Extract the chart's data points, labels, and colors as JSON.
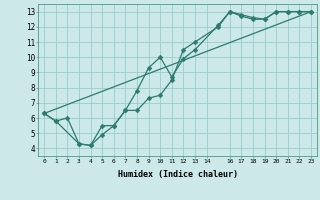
{
  "xlabel": "Humidex (Indice chaleur)",
  "bg_color": "#cce8e8",
  "grid_color": "#99cccc",
  "line_color": "#2d7a6e",
  "xlim": [
    -0.5,
    23.5
  ],
  "ylim": [
    3.5,
    13.5
  ],
  "xticks": [
    0,
    1,
    2,
    3,
    4,
    5,
    6,
    7,
    8,
    9,
    10,
    11,
    12,
    13,
    14,
    16,
    17,
    18,
    19,
    20,
    21,
    22,
    23
  ],
  "yticks": [
    4,
    5,
    6,
    7,
    8,
    9,
    10,
    11,
    12,
    13
  ],
  "line1_x": [
    0,
    1,
    2,
    3,
    4,
    5,
    6,
    7,
    8,
    9,
    10,
    11,
    12,
    13,
    15,
    16,
    17,
    18,
    19,
    20,
    21,
    22,
    23
  ],
  "line1_y": [
    6.3,
    5.8,
    6.0,
    4.3,
    4.2,
    5.5,
    5.5,
    6.5,
    7.8,
    9.3,
    10.0,
    8.7,
    9.9,
    10.5,
    12.1,
    13.0,
    12.7,
    12.5,
    12.5,
    13.0,
    13.0,
    13.0,
    13.0
  ],
  "line2_x": [
    0,
    1,
    3,
    4,
    5,
    6,
    7,
    8,
    9,
    10,
    11,
    12,
    13,
    15,
    16,
    17,
    18,
    19,
    20,
    21,
    22,
    23
  ],
  "line2_y": [
    6.3,
    5.8,
    4.3,
    4.2,
    4.9,
    5.5,
    6.5,
    6.5,
    7.3,
    7.5,
    8.5,
    10.5,
    11.0,
    12.0,
    13.0,
    12.8,
    12.6,
    12.5,
    13.0,
    13.0,
    13.0,
    13.0
  ],
  "line3_x": [
    0,
    23
  ],
  "line3_y": [
    6.3,
    13.0
  ]
}
